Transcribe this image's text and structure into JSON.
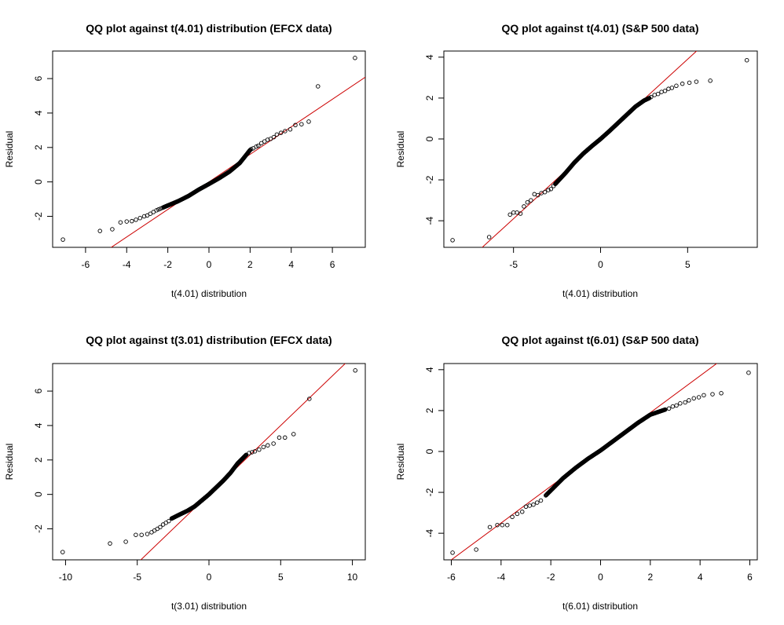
{
  "colors": {
    "points": "#000000",
    "reference_line": "#cc0000",
    "background": "#ffffff"
  },
  "chart_data": [
    {
      "type": "scatter",
      "title": "QQ plot against t(4.01) distribution (EFCX data)",
      "xlabel": "t(4.01) distribution",
      "ylabel": "Residual",
      "xlim": [
        -7.6,
        7.6
      ],
      "ylim": [
        -3.8,
        7.6
      ],
      "xticks": [
        -6,
        -4,
        -2,
        0,
        2,
        4,
        6
      ],
      "yticks": [
        -2,
        0,
        2,
        4,
        6
      ],
      "reference_line": {
        "slope": 0.8,
        "intercept": 0.0
      },
      "bulk": {
        "n": 220,
        "tail": [
          -2.2,
          2.0
        ],
        "curve": [
          [
            -2.2,
            -1.47
          ],
          [
            -1.5,
            -1.12
          ],
          [
            -1.0,
            -0.82
          ],
          [
            -0.5,
            -0.45
          ],
          [
            0.0,
            -0.12
          ],
          [
            0.5,
            0.22
          ],
          [
            1.0,
            0.6
          ],
          [
            1.5,
            1.1
          ],
          [
            2.0,
            1.85
          ]
        ]
      },
      "points": [
        [
          -7.1,
          -3.35
        ],
        [
          -5.3,
          -2.85
        ],
        [
          -4.7,
          -2.75
        ],
        [
          -4.3,
          -2.35
        ],
        [
          -4.0,
          -2.3
        ],
        [
          -3.75,
          -2.28
        ],
        [
          -3.55,
          -2.2
        ],
        [
          -3.35,
          -2.1
        ],
        [
          -3.15,
          -2.0
        ],
        [
          -3.0,
          -1.95
        ],
        [
          -2.85,
          -1.85
        ],
        [
          -2.7,
          -1.75
        ],
        [
          -2.55,
          -1.65
        ],
        [
          -2.45,
          -1.6
        ],
        [
          -2.35,
          -1.55
        ],
        [
          -2.25,
          -1.5
        ],
        [
          2.05,
          1.9
        ],
        [
          2.15,
          1.95
        ],
        [
          2.3,
          2.05
        ],
        [
          2.4,
          2.1
        ],
        [
          2.55,
          2.25
        ],
        [
          2.7,
          2.35
        ],
        [
          2.85,
          2.45
        ],
        [
          3.0,
          2.5
        ],
        [
          3.15,
          2.6
        ],
        [
          3.3,
          2.75
        ],
        [
          3.5,
          2.85
        ],
        [
          3.7,
          2.95
        ],
        [
          3.95,
          3.05
        ],
        [
          4.2,
          3.3
        ],
        [
          4.5,
          3.35
        ],
        [
          4.85,
          3.5
        ],
        [
          5.3,
          5.55
        ],
        [
          7.1,
          7.2
        ]
      ]
    },
    {
      "type": "scatter",
      "title": "QQ plot against t(4.01) (S&P 500 data)",
      "xlabel": "t(4.01) distribution",
      "ylabel": "Residual",
      "xlim": [
        -9.0,
        9.0
      ],
      "ylim": [
        -5.3,
        4.3
      ],
      "xticks": [
        -5,
        0,
        5
      ],
      "yticks": [
        -4,
        -2,
        0,
        2,
        4
      ],
      "reference_line": {
        "slope": 0.78,
        "intercept": 0.0
      },
      "bulk": {
        "n": 260,
        "tail": [
          -2.6,
          2.8
        ],
        "curve": [
          [
            -2.6,
            -2.2
          ],
          [
            -2.0,
            -1.65
          ],
          [
            -1.5,
            -1.15
          ],
          [
            -1.0,
            -0.72
          ],
          [
            -0.5,
            -0.35
          ],
          [
            0.0,
            0.0
          ],
          [
            0.5,
            0.38
          ],
          [
            1.0,
            0.78
          ],
          [
            1.5,
            1.18
          ],
          [
            2.0,
            1.58
          ],
          [
            2.5,
            1.88
          ],
          [
            2.8,
            2.0
          ]
        ]
      },
      "points": [
        [
          -8.5,
          -4.95
        ],
        [
          -6.4,
          -4.8
        ],
        [
          -5.2,
          -3.7
        ],
        [
          -5.0,
          -3.6
        ],
        [
          -4.8,
          -3.6
        ],
        [
          -4.6,
          -3.65
        ],
        [
          -4.4,
          -3.3
        ],
        [
          -4.2,
          -3.1
        ],
        [
          -4.0,
          -3.0
        ],
        [
          -3.8,
          -2.7
        ],
        [
          -3.6,
          -2.75
        ],
        [
          -3.4,
          -2.65
        ],
        [
          -3.2,
          -2.6
        ],
        [
          -3.0,
          -2.5
        ],
        [
          -2.85,
          -2.45
        ],
        [
          -2.7,
          -2.3
        ],
        [
          2.9,
          2.05
        ],
        [
          3.1,
          2.15
        ],
        [
          3.3,
          2.2
        ],
        [
          3.5,
          2.3
        ],
        [
          3.7,
          2.35
        ],
        [
          3.9,
          2.45
        ],
        [
          4.1,
          2.5
        ],
        [
          4.35,
          2.6
        ],
        [
          4.7,
          2.7
        ],
        [
          5.1,
          2.75
        ],
        [
          5.5,
          2.8
        ],
        [
          6.3,
          2.85
        ],
        [
          8.4,
          3.85
        ]
      ]
    },
    {
      "type": "scatter",
      "title": "QQ plot against t(3.01) distribution (EFCX data)",
      "xlabel": "t(3.01) distribution",
      "ylabel": "Residual",
      "xlim": [
        -10.9,
        10.9
      ],
      "ylim": [
        -3.8,
        7.6
      ],
      "xticks": [
        -10,
        -5,
        0,
        5,
        10
      ],
      "yticks": [
        -2,
        0,
        2,
        4,
        6
      ],
      "reference_line": {
        "slope": 0.8,
        "intercept": 0.0
      },
      "bulk": {
        "n": 220,
        "tail": [
          -2.6,
          2.6
        ],
        "curve": [
          [
            -2.6,
            -1.4
          ],
          [
            -2.0,
            -1.15
          ],
          [
            -1.5,
            -0.95
          ],
          [
            -1.0,
            -0.7
          ],
          [
            -0.5,
            -0.35
          ],
          [
            0.0,
            0.0
          ],
          [
            0.5,
            0.4
          ],
          [
            1.0,
            0.8
          ],
          [
            1.5,
            1.25
          ],
          [
            2.0,
            1.8
          ],
          [
            2.6,
            2.3
          ]
        ]
      },
      "points": [
        [
          -10.2,
          -3.35
        ],
        [
          -6.9,
          -2.85
        ],
        [
          -5.8,
          -2.75
        ],
        [
          -5.1,
          -2.35
        ],
        [
          -4.7,
          -2.35
        ],
        [
          -4.3,
          -2.3
        ],
        [
          -4.0,
          -2.2
        ],
        [
          -3.8,
          -2.1
        ],
        [
          -3.6,
          -2.0
        ],
        [
          -3.4,
          -1.9
        ],
        [
          -3.2,
          -1.75
        ],
        [
          -3.0,
          -1.65
        ],
        [
          -2.8,
          -1.55
        ],
        [
          2.8,
          2.4
        ],
        [
          3.0,
          2.45
        ],
        [
          3.2,
          2.5
        ],
        [
          3.5,
          2.6
        ],
        [
          3.8,
          2.75
        ],
        [
          4.1,
          2.85
        ],
        [
          4.5,
          2.95
        ],
        [
          4.9,
          3.3
        ],
        [
          5.3,
          3.3
        ],
        [
          5.9,
          3.5
        ],
        [
          7.0,
          5.55
        ],
        [
          10.2,
          7.2
        ]
      ]
    },
    {
      "type": "scatter",
      "title": "QQ plot against t(6.01) (S&P 500 data)",
      "xlabel": "t(6.01) distribution",
      "ylabel": "Residual",
      "xlim": [
        -6.3,
        6.3
      ],
      "ylim": [
        -5.3,
        4.3
      ],
      "xticks": [
        -6,
        -4,
        -2,
        0,
        2,
        4,
        6
      ],
      "yticks": [
        -4,
        -2,
        0,
        2,
        4
      ],
      "reference_line": {
        "slope": 0.9,
        "intercept": 0.1
      },
      "bulk": {
        "n": 260,
        "tail": [
          -2.2,
          2.6
        ],
        "curve": [
          [
            -2.2,
            -2.15
          ],
          [
            -1.5,
            -1.3
          ],
          [
            -1.0,
            -0.8
          ],
          [
            -0.5,
            -0.35
          ],
          [
            0.0,
            0.05
          ],
          [
            0.5,
            0.5
          ],
          [
            1.0,
            0.95
          ],
          [
            1.5,
            1.4
          ],
          [
            2.0,
            1.8
          ],
          [
            2.6,
            2.05
          ]
        ]
      },
      "points": [
        [
          -5.95,
          -4.95
        ],
        [
          -5.0,
          -4.8
        ],
        [
          -4.45,
          -3.7
        ],
        [
          -4.15,
          -3.6
        ],
        [
          -3.95,
          -3.6
        ],
        [
          -3.75,
          -3.6
        ],
        [
          -3.55,
          -3.2
        ],
        [
          -3.35,
          -3.05
        ],
        [
          -3.15,
          -2.95
        ],
        [
          -3.0,
          -2.7
        ],
        [
          -2.85,
          -2.65
        ],
        [
          -2.7,
          -2.6
        ],
        [
          -2.55,
          -2.5
        ],
        [
          -2.4,
          -2.4
        ],
        [
          2.75,
          2.1
        ],
        [
          2.9,
          2.2
        ],
        [
          3.05,
          2.25
        ],
        [
          3.2,
          2.35
        ],
        [
          3.4,
          2.4
        ],
        [
          3.55,
          2.5
        ],
        [
          3.75,
          2.6
        ],
        [
          3.95,
          2.65
        ],
        [
          4.15,
          2.75
        ],
        [
          4.5,
          2.8
        ],
        [
          4.85,
          2.85
        ],
        [
          5.95,
          3.85
        ]
      ]
    }
  ]
}
